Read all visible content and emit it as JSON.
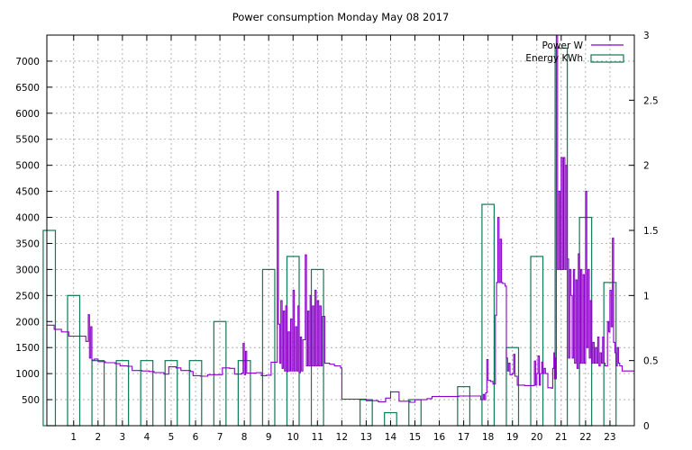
{
  "chart_data": {
    "type": "bar+line",
    "title": "Power consumption Monday May 08 2017",
    "grid": true,
    "legend_position": "top-right",
    "x_axis": {
      "range": [
        -0.1,
        24.0
      ],
      "ticks": [
        "1",
        "2",
        "3",
        "4",
        "5",
        "6",
        "7",
        "8",
        "9",
        "10",
        "11",
        "12",
        "13",
        "14",
        "15",
        "16",
        "17",
        "18",
        "19",
        "20",
        "21",
        "22",
        "23"
      ]
    },
    "y_axis_left": {
      "range": [
        0,
        7500
      ],
      "ticks": [
        "500",
        "1000",
        "1500",
        "2000",
        "2500",
        "3000",
        "3500",
        "4000",
        "4500",
        "5000",
        "5500",
        "6000",
        "6500",
        "7000"
      ]
    },
    "y_axis_right": {
      "range": [
        0,
        3
      ],
      "ticks": [
        "0",
        "0.5",
        "1",
        "1.5",
        "2",
        "2.5",
        "3"
      ]
    },
    "series": [
      {
        "name": "Power W",
        "kind": "line",
        "axis": "left",
        "color": "#8b00c9",
        "points": [
          [
            -0.1,
            1930
          ],
          [
            0.2,
            1850
          ],
          [
            0.5,
            1800
          ],
          [
            0.8,
            1720
          ],
          [
            1.3,
            1720
          ],
          [
            1.5,
            1620
          ],
          [
            1.6,
            2130
          ],
          [
            1.65,
            1300
          ],
          [
            1.7,
            1900
          ],
          [
            1.75,
            1260
          ],
          [
            1.85,
            1280
          ],
          [
            2.0,
            1230
          ],
          [
            2.3,
            1210
          ],
          [
            2.7,
            1190
          ],
          [
            2.9,
            1150
          ],
          [
            3.2,
            1140
          ],
          [
            3.4,
            1060
          ],
          [
            3.8,
            1050
          ],
          [
            4.1,
            1040
          ],
          [
            4.3,
            1020
          ],
          [
            4.7,
            990
          ],
          [
            4.9,
            1130
          ],
          [
            5.2,
            1110
          ],
          [
            5.4,
            1060
          ],
          [
            5.8,
            1040
          ],
          [
            5.9,
            960
          ],
          [
            6.2,
            950
          ],
          [
            6.5,
            980
          ],
          [
            6.9,
            980
          ],
          [
            7.1,
            1110
          ],
          [
            7.4,
            1100
          ],
          [
            7.6,
            990
          ],
          [
            7.9,
            1010
          ],
          [
            7.95,
            1580
          ],
          [
            8.0,
            980
          ],
          [
            8.05,
            1430
          ],
          [
            8.1,
            1010
          ],
          [
            8.5,
            1020
          ],
          [
            8.7,
            960
          ],
          [
            8.9,
            970
          ],
          [
            9.1,
            1220
          ],
          [
            9.3,
            1220
          ],
          [
            9.35,
            4500
          ],
          [
            9.4,
            1950
          ],
          [
            9.45,
            1200
          ],
          [
            9.5,
            2400
          ],
          [
            9.55,
            1100
          ],
          [
            9.6,
            2200
          ],
          [
            9.65,
            1050
          ],
          [
            9.7,
            2300
          ],
          [
            9.75,
            1040
          ],
          [
            9.8,
            1800
          ],
          [
            9.85,
            1050
          ],
          [
            9.9,
            2050
          ],
          [
            9.95,
            1050
          ],
          [
            10.0,
            2600
          ],
          [
            10.05,
            1050
          ],
          [
            10.1,
            1900
          ],
          [
            10.15,
            1050
          ],
          [
            10.2,
            2300
          ],
          [
            10.25,
            1020
          ],
          [
            10.3,
            1700
          ],
          [
            10.35,
            1050
          ],
          [
            10.4,
            1650
          ],
          [
            10.5,
            3280
          ],
          [
            10.55,
            1150
          ],
          [
            10.6,
            2200
          ],
          [
            10.65,
            1150
          ],
          [
            10.7,
            2500
          ],
          [
            10.75,
            1150
          ],
          [
            10.8,
            2300
          ],
          [
            10.85,
            1150
          ],
          [
            10.9,
            2600
          ],
          [
            10.95,
            1150
          ],
          [
            11.0,
            2400
          ],
          [
            11.05,
            1150
          ],
          [
            11.1,
            2300
          ],
          [
            11.15,
            1150
          ],
          [
            11.2,
            2100
          ],
          [
            11.3,
            1200
          ],
          [
            11.5,
            1180
          ],
          [
            11.7,
            1150
          ],
          [
            11.95,
            1110
          ],
          [
            12.0,
            510
          ],
          [
            12.8,
            510
          ],
          [
            13.0,
            480
          ],
          [
            13.5,
            460
          ],
          [
            13.8,
            530
          ],
          [
            13.9,
            530
          ],
          [
            14.0,
            650
          ],
          [
            14.3,
            650
          ],
          [
            14.35,
            470
          ],
          [
            14.8,
            450
          ],
          [
            15.0,
            500
          ],
          [
            15.5,
            520
          ],
          [
            15.7,
            560
          ],
          [
            16.5,
            560
          ],
          [
            16.8,
            570
          ],
          [
            17.5,
            570
          ],
          [
            17.7,
            500
          ],
          [
            17.8,
            600
          ],
          [
            17.85,
            500
          ],
          [
            17.9,
            630
          ],
          [
            17.95,
            1270
          ],
          [
            18.0,
            870
          ],
          [
            18.1,
            850
          ],
          [
            18.2,
            800
          ],
          [
            18.3,
            2120
          ],
          [
            18.35,
            2750
          ],
          [
            18.4,
            4000
          ],
          [
            18.45,
            2750
          ],
          [
            18.5,
            3580
          ],
          [
            18.55,
            2750
          ],
          [
            18.6,
            2730
          ],
          [
            18.7,
            2680
          ],
          [
            18.75,
            1300
          ],
          [
            18.8,
            1050
          ],
          [
            18.85,
            1200
          ],
          [
            18.9,
            980
          ],
          [
            19.0,
            1000
          ],
          [
            19.05,
            1370
          ],
          [
            19.1,
            950
          ],
          [
            19.2,
            780
          ],
          [
            19.5,
            770
          ],
          [
            19.8,
            770
          ],
          [
            19.9,
            1240
          ],
          [
            19.95,
            780
          ],
          [
            20.0,
            1000
          ],
          [
            20.05,
            1340
          ],
          [
            20.1,
            780
          ],
          [
            20.15,
            1000
          ],
          [
            20.2,
            1220
          ],
          [
            20.25,
            1000
          ],
          [
            20.3,
            1100
          ],
          [
            20.35,
            1000
          ],
          [
            20.4,
            1000
          ],
          [
            20.45,
            730
          ],
          [
            20.6,
            720
          ],
          [
            20.65,
            1100
          ],
          [
            20.7,
            1400
          ],
          [
            20.72,
            900
          ],
          [
            20.75,
            1300
          ],
          [
            20.78,
            900
          ],
          [
            20.8,
            7500
          ],
          [
            20.85,
            3000
          ],
          [
            20.9,
            4500
          ],
          [
            20.95,
            3000
          ],
          [
            21.0,
            5150
          ],
          [
            21.05,
            3000
          ],
          [
            21.1,
            5150
          ],
          [
            21.15,
            3000
          ],
          [
            21.2,
            5000
          ],
          [
            21.25,
            3200
          ],
          [
            21.3,
            1300
          ],
          [
            21.35,
            3000
          ],
          [
            21.4,
            2500
          ],
          [
            21.45,
            1300
          ],
          [
            21.5,
            3000
          ],
          [
            21.55,
            1200
          ],
          [
            21.6,
            2800
          ],
          [
            21.65,
            1100
          ],
          [
            21.7,
            3300
          ],
          [
            21.75,
            1200
          ],
          [
            21.8,
            3000
          ],
          [
            21.85,
            1200
          ],
          [
            21.9,
            2900
          ],
          [
            21.95,
            1200
          ],
          [
            22.0,
            4500
          ],
          [
            22.05,
            1500
          ],
          [
            22.1,
            3000
          ],
          [
            22.15,
            1300
          ],
          [
            22.2,
            2400
          ],
          [
            22.25,
            1200
          ],
          [
            22.3,
            1600
          ],
          [
            22.35,
            1200
          ],
          [
            22.4,
            1500
          ],
          [
            22.45,
            1200
          ],
          [
            22.5,
            1700
          ],
          [
            22.55,
            1150
          ],
          [
            22.6,
            1400
          ],
          [
            22.65,
            1200
          ],
          [
            22.7,
            1700
          ],
          [
            22.75,
            1200
          ],
          [
            22.8,
            1150
          ],
          [
            22.9,
            2000
          ],
          [
            22.95,
            1800
          ],
          [
            23.0,
            2600
          ],
          [
            23.05,
            1900
          ],
          [
            23.1,
            3600
          ],
          [
            23.15,
            1600
          ],
          [
            23.2,
            1400
          ],
          [
            23.25,
            1150
          ],
          [
            23.3,
            1500
          ],
          [
            23.35,
            1200
          ],
          [
            23.4,
            1150
          ],
          [
            23.5,
            1050
          ],
          [
            24.0,
            1050
          ]
        ]
      },
      {
        "name": "Energy KWh",
        "kind": "bar",
        "axis": "right",
        "color": "#117755",
        "bar_width": 0.5,
        "points": [
          [
            0,
            1.5
          ],
          [
            1,
            1.0
          ],
          [
            2,
            0.5
          ],
          [
            3,
            0.5
          ],
          [
            4,
            0.5
          ],
          [
            5,
            0.5
          ],
          [
            6,
            0.5
          ],
          [
            7,
            0.8
          ],
          [
            8,
            0.5
          ],
          [
            9,
            1.2
          ],
          [
            10,
            1.3
          ],
          [
            11,
            1.2
          ],
          [
            13,
            0.2
          ],
          [
            14,
            0.1
          ],
          [
            15,
            0.2
          ],
          [
            17,
            0.3
          ],
          [
            18,
            1.7
          ],
          [
            19,
            0.6
          ],
          [
            20,
            1.3
          ],
          [
            21,
            2.9
          ],
          [
            22,
            1.6
          ],
          [
            23,
            1.1
          ]
        ]
      }
    ]
  }
}
